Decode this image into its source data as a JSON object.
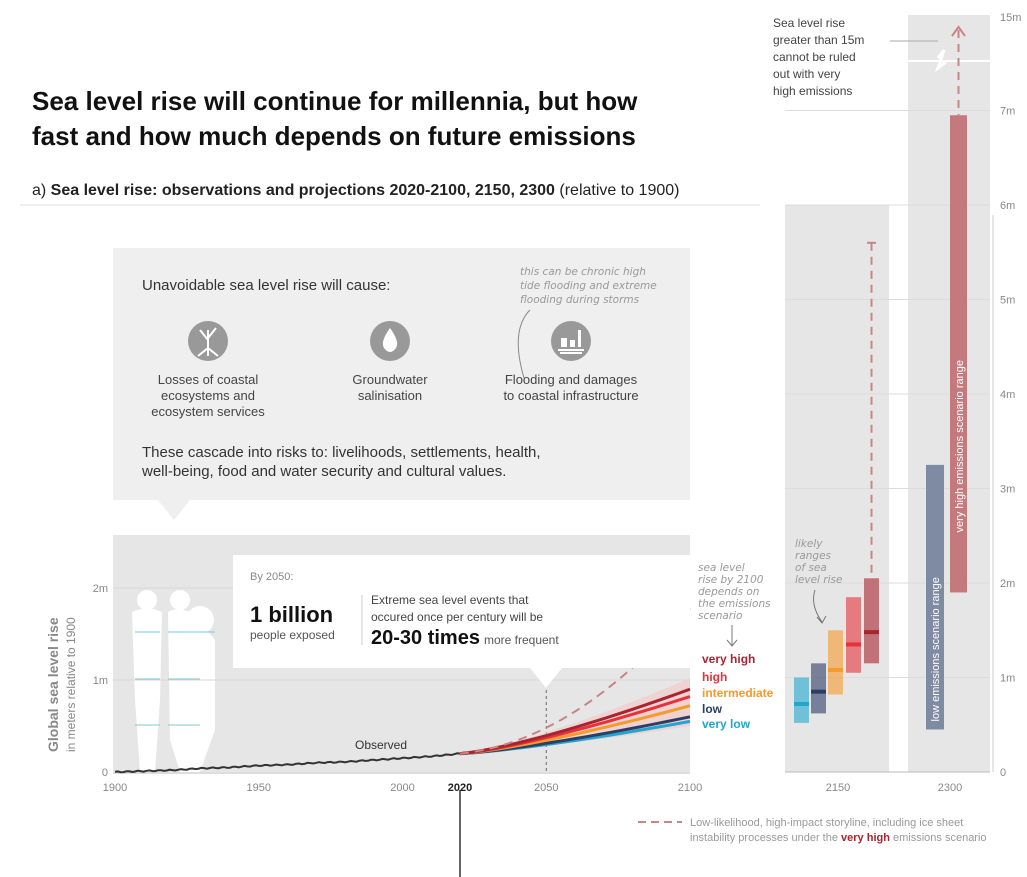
{
  "title": {
    "line1": "Sea level rise will continue for millennia, but how",
    "line2": "fast and how much depends on future emissions"
  },
  "subtitle": {
    "prefix": "a) ",
    "bold": "Sea level rise: observations and projections 2020-2100, 2150, 2300",
    "suffix": " (relative to 1900)"
  },
  "infobox": {
    "heading": "Unavoidable sea level rise will cause:",
    "note": [
      "this can be chronic high",
      "tide flooding and extreme",
      "flooding during storms"
    ],
    "items": [
      {
        "icon": "mangrove-icon",
        "lines": [
          "Losses of coastal",
          "ecosystems and",
          "ecosystem services"
        ]
      },
      {
        "icon": "salt-water-drop-icon",
        "lines": [
          "Groundwater",
          "salinisation"
        ]
      },
      {
        "icon": "flooded-infrastructure-icon",
        "lines": [
          "Flooding and damages",
          "to coastal infrastructure"
        ]
      }
    ],
    "cascade": [
      "These cascade into risks to: livelihoods, settlements, health,",
      "well-being, food and water security and cultural values."
    ]
  },
  "callout": {
    "by": "By 2050:",
    "big1": "1 billion",
    "small1": "people exposed",
    "text1": "Extreme sea level events that",
    "text2": "occured once per century will be",
    "big2": "20-30 times",
    "small2": "more frequent"
  },
  "annotations": {
    "observed": "Observed",
    "depends": [
      "sea level",
      "rise by 2100",
      "depends on",
      "the emissions",
      "scenario"
    ],
    "likely": [
      "likely",
      "ranges",
      "of sea",
      "level rise"
    ],
    "greater15": [
      "Sea level rise",
      "greater than 15m",
      "cannot be ruled",
      "out with very",
      "high emissions"
    ],
    "low_range": "low emissions scenario range",
    "vhigh_range": "very high emissions scenario range"
  },
  "legend": {
    "line1": "Low-likelihood, high-impact storyline, including ice sheet",
    "line2a": "instability processes under the ",
    "line2b": "very high",
    "line2c": " emissions scenario"
  },
  "colors": {
    "very_high": "#a8252f",
    "high": "#e5323b",
    "intermediate": "#f59a2c",
    "low": "#2c3e66",
    "very_low": "#22a6cf",
    "storyline": "#c98585",
    "panel": "#e6e6e6"
  },
  "chart_data": {
    "type": "line",
    "ylabel": "Global sea level rise",
    "ylabel_sub": "in meters relative to 1900",
    "x_ticks": [
      "1900",
      "1950",
      "2000",
      "2020",
      "2050",
      "2100"
    ],
    "x_ticks_right": [
      "2150",
      "2300"
    ],
    "y_ticks_left": [
      "0",
      "1m",
      "2m"
    ],
    "y_ticks_right": [
      "0",
      "1m",
      "2m",
      "3m",
      "4m",
      "5m",
      "6m",
      "7m",
      "15m"
    ],
    "xlim": [
      1900,
      2100
    ],
    "ylim_left": [
      0,
      2.5
    ],
    "observed": [
      [
        1900,
        0
      ],
      [
        1910,
        0.01
      ],
      [
        1920,
        0.02
      ],
      [
        1930,
        0.04
      ],
      [
        1940,
        0.05
      ],
      [
        1950,
        0.07
      ],
      [
        1960,
        0.08
      ],
      [
        1970,
        0.1
      ],
      [
        1980,
        0.11
      ],
      [
        1990,
        0.13
      ],
      [
        2000,
        0.15
      ],
      [
        2010,
        0.17
      ],
      [
        2020,
        0.2
      ]
    ],
    "projections_2100": [
      {
        "name": "very high",
        "start": 0.2,
        "end": 0.9
      },
      {
        "name": "high",
        "start": 0.2,
        "end": 0.82
      },
      {
        "name": "intermediate",
        "start": 0.2,
        "end": 0.72
      },
      {
        "name": "low",
        "start": 0.2,
        "end": 0.6
      },
      {
        "name": "very low",
        "start": 0.2,
        "end": 0.55
      }
    ],
    "storyline": [
      [
        2020,
        0.2
      ],
      [
        2050,
        0.57
      ],
      [
        2100,
        1.78
      ]
    ],
    "ranges_2150": [
      {
        "name": "very low",
        "low": 0.52,
        "median": 0.72,
        "high": 1.0
      },
      {
        "name": "low",
        "low": 0.62,
        "median": 0.85,
        "high": 1.15
      },
      {
        "name": "intermediate",
        "low": 0.82,
        "median": 1.08,
        "high": 1.5
      },
      {
        "name": "high",
        "low": 1.05,
        "median": 1.35,
        "high": 1.85
      },
      {
        "name": "very high",
        "low": 1.15,
        "median": 1.48,
        "high": 2.05,
        "storyline_max": 5.6
      }
    ],
    "ranges_2300": [
      {
        "name": "low",
        "low": 0.45,
        "high": 3.25
      },
      {
        "name": "very high",
        "low": 1.9,
        "high": 6.95,
        "storyline_max": 15
      }
    ]
  }
}
